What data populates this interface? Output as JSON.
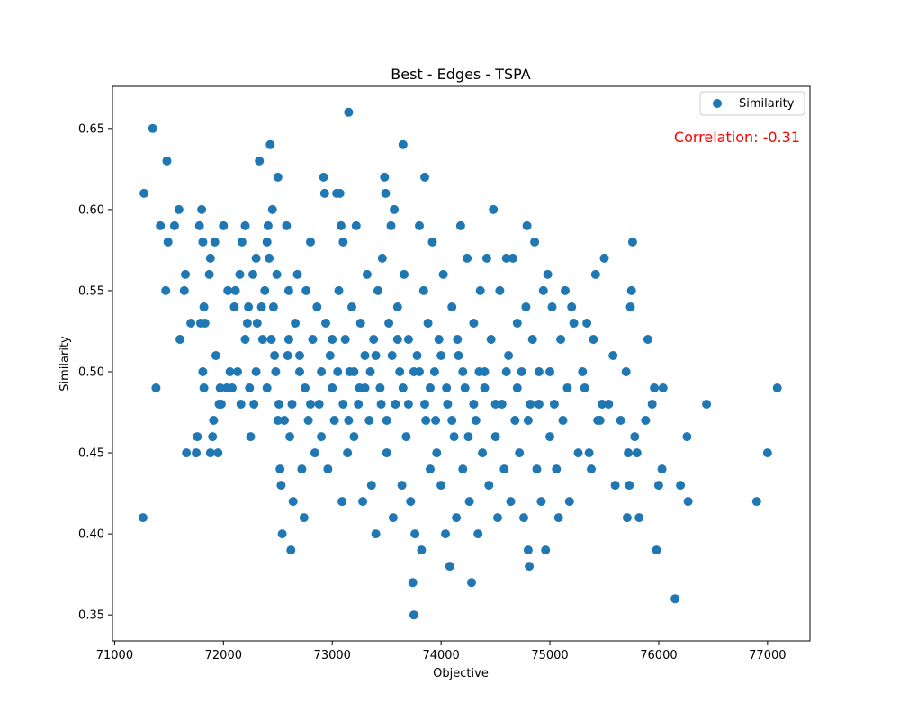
{
  "colors": {
    "marker": "#1f77b4",
    "annotation": "#ff0000",
    "axis": "#000000",
    "legend_border": "#cccccc"
  },
  "chart_data": {
    "type": "scatter",
    "title": "Best - Edges - TSPA",
    "xlabel": "Objective",
    "ylabel": "Similarity",
    "xlim": [
      70980,
      77390
    ],
    "ylim": [
      0.334,
      0.676
    ],
    "xticks": [
      71000,
      72000,
      73000,
      74000,
      75000,
      76000,
      77000
    ],
    "yticks": [
      0.35,
      0.4,
      0.45,
      0.5,
      0.55,
      0.6,
      0.65
    ],
    "xtick_labels": [
      "71000",
      "72000",
      "73000",
      "74000",
      "75000",
      "76000",
      "77000"
    ],
    "ytick_labels": [
      "0.35",
      "0.40",
      "0.45",
      "0.50",
      "0.55",
      "0.60",
      "0.65"
    ],
    "grid": false,
    "legend": {
      "placement": "top-right",
      "entries": [
        "Similarity"
      ]
    },
    "annotation": "Correlation: -0.31",
    "series": [
      {
        "name": "Similarity",
        "points": [
          [
            71270,
            0.61
          ],
          [
            71350,
            0.65
          ],
          [
            71380,
            0.49
          ],
          [
            71260,
            0.41
          ],
          [
            71480,
            0.63
          ],
          [
            71420,
            0.59
          ],
          [
            71490,
            0.58
          ],
          [
            71470,
            0.55
          ],
          [
            71550,
            0.59
          ],
          [
            71590,
            0.6
          ],
          [
            71600,
            0.52
          ],
          [
            71640,
            0.55
          ],
          [
            71650,
            0.56
          ],
          [
            71660,
            0.45
          ],
          [
            71700,
            0.53
          ],
          [
            71750,
            0.45
          ],
          [
            71760,
            0.46
          ],
          [
            71780,
            0.59
          ],
          [
            71800,
            0.6
          ],
          [
            71810,
            0.58
          ],
          [
            71820,
            0.54
          ],
          [
            71830,
            0.53
          ],
          [
            71790,
            0.53
          ],
          [
            71810,
            0.5
          ],
          [
            71820,
            0.49
          ],
          [
            71870,
            0.56
          ],
          [
            71880,
            0.57
          ],
          [
            71880,
            0.45
          ],
          [
            71900,
            0.46
          ],
          [
            71910,
            0.47
          ],
          [
            71920,
            0.58
          ],
          [
            71930,
            0.51
          ],
          [
            71950,
            0.45
          ],
          [
            71960,
            0.48
          ],
          [
            71970,
            0.49
          ],
          [
            71980,
            0.48
          ],
          [
            72000,
            0.59
          ],
          [
            72030,
            0.49
          ],
          [
            72040,
            0.55
          ],
          [
            72060,
            0.5
          ],
          [
            72080,
            0.49
          ],
          [
            72100,
            0.54
          ],
          [
            72110,
            0.55
          ],
          [
            72130,
            0.5
          ],
          [
            72150,
            0.56
          ],
          [
            72160,
            0.48
          ],
          [
            72170,
            0.58
          ],
          [
            72200,
            0.59
          ],
          [
            72220,
            0.53
          ],
          [
            72230,
            0.54
          ],
          [
            72240,
            0.49
          ],
          [
            72250,
            0.46
          ],
          [
            72270,
            0.56
          ],
          [
            72280,
            0.48
          ],
          [
            72300,
            0.57
          ],
          [
            72310,
            0.53
          ],
          [
            72330,
            0.63
          ],
          [
            72350,
            0.54
          ],
          [
            72360,
            0.52
          ],
          [
            72380,
            0.55
          ],
          [
            72400,
            0.58
          ],
          [
            72410,
            0.59
          ],
          [
            72420,
            0.57
          ],
          [
            72430,
            0.64
          ],
          [
            72440,
            0.52
          ],
          [
            72450,
            0.6
          ],
          [
            72460,
            0.54
          ],
          [
            72470,
            0.51
          ],
          [
            72480,
            0.5
          ],
          [
            72490,
            0.56
          ],
          [
            72500,
            0.62
          ],
          [
            72510,
            0.48
          ],
          [
            72520,
            0.44
          ],
          [
            72530,
            0.43
          ],
          [
            72540,
            0.4
          ],
          [
            72560,
            0.47
          ],
          [
            72580,
            0.59
          ],
          [
            72590,
            0.51
          ],
          [
            72600,
            0.55
          ],
          [
            72610,
            0.46
          ],
          [
            72620,
            0.39
          ],
          [
            72630,
            0.48
          ],
          [
            72640,
            0.42
          ],
          [
            72660,
            0.53
          ],
          [
            72680,
            0.56
          ],
          [
            72700,
            0.5
          ],
          [
            72720,
            0.44
          ],
          [
            72740,
            0.41
          ],
          [
            72750,
            0.49
          ],
          [
            72760,
            0.55
          ],
          [
            72780,
            0.47
          ],
          [
            72800,
            0.58
          ],
          [
            72820,
            0.52
          ],
          [
            72840,
            0.45
          ],
          [
            72860,
            0.54
          ],
          [
            72880,
            0.48
          ],
          [
            72900,
            0.5
          ],
          [
            72920,
            0.62
          ],
          [
            72930,
            0.61
          ],
          [
            72940,
            0.53
          ],
          [
            72960,
            0.44
          ],
          [
            72980,
            0.51
          ],
          [
            73000,
            0.49
          ],
          [
            73020,
            0.47
          ],
          [
            73040,
            0.61
          ],
          [
            73060,
            0.55
          ],
          [
            73070,
            0.61
          ],
          [
            73080,
            0.59
          ],
          [
            73090,
            0.42
          ],
          [
            73100,
            0.58
          ],
          [
            73120,
            0.52
          ],
          [
            73140,
            0.45
          ],
          [
            73150,
            0.66
          ],
          [
            73160,
            0.5
          ],
          [
            73180,
            0.54
          ],
          [
            73200,
            0.46
          ],
          [
            73220,
            0.59
          ],
          [
            73240,
            0.48
          ],
          [
            73260,
            0.53
          ],
          [
            73280,
            0.42
          ],
          [
            73300,
            0.51
          ],
          [
            73320,
            0.56
          ],
          [
            73340,
            0.47
          ],
          [
            73360,
            0.43
          ],
          [
            73380,
            0.52
          ],
          [
            73400,
            0.4
          ],
          [
            73420,
            0.55
          ],
          [
            73440,
            0.49
          ],
          [
            73460,
            0.57
          ],
          [
            73480,
            0.62
          ],
          [
            73490,
            0.61
          ],
          [
            73500,
            0.45
          ],
          [
            73520,
            0.53
          ],
          [
            73540,
            0.59
          ],
          [
            73560,
            0.41
          ],
          [
            73570,
            0.6
          ],
          [
            73580,
            0.48
          ],
          [
            73600,
            0.54
          ],
          [
            73620,
            0.5
          ],
          [
            73640,
            0.43
          ],
          [
            73650,
            0.64
          ],
          [
            73660,
            0.56
          ],
          [
            73680,
            0.46
          ],
          [
            73700,
            0.52
          ],
          [
            73720,
            0.42
          ],
          [
            73740,
            0.37
          ],
          [
            73750,
            0.35
          ],
          [
            73760,
            0.4
          ],
          [
            73780,
            0.51
          ],
          [
            73800,
            0.59
          ],
          [
            73820,
            0.39
          ],
          [
            73840,
            0.55
          ],
          [
            73850,
            0.62
          ],
          [
            73860,
            0.47
          ],
          [
            73880,
            0.53
          ],
          [
            73900,
            0.44
          ],
          [
            73920,
            0.58
          ],
          [
            73940,
            0.5
          ],
          [
            73960,
            0.45
          ],
          [
            73980,
            0.52
          ],
          [
            74000,
            0.43
          ],
          [
            74020,
            0.56
          ],
          [
            74040,
            0.4
          ],
          [
            74060,
            0.48
          ],
          [
            74080,
            0.38
          ],
          [
            74100,
            0.54
          ],
          [
            74120,
            0.46
          ],
          [
            74140,
            0.41
          ],
          [
            74160,
            0.51
          ],
          [
            74180,
            0.59
          ],
          [
            74200,
            0.44
          ],
          [
            74220,
            0.49
          ],
          [
            74240,
            0.57
          ],
          [
            74260,
            0.42
          ],
          [
            74280,
            0.37
          ],
          [
            74300,
            0.53
          ],
          [
            74320,
            0.47
          ],
          [
            74340,
            0.4
          ],
          [
            74360,
            0.55
          ],
          [
            74380,
            0.45
          ],
          [
            74400,
            0.5
          ],
          [
            74420,
            0.57
          ],
          [
            74440,
            0.43
          ],
          [
            74460,
            0.52
          ],
          [
            74480,
            0.6
          ],
          [
            74500,
            0.46
          ],
          [
            74520,
            0.41
          ],
          [
            74540,
            0.55
          ],
          [
            74560,
            0.48
          ],
          [
            74580,
            0.44
          ],
          [
            74600,
            0.57
          ],
          [
            74620,
            0.51
          ],
          [
            74640,
            0.42
          ],
          [
            74660,
            0.57
          ],
          [
            74680,
            0.47
          ],
          [
            74700,
            0.53
          ],
          [
            74720,
            0.45
          ],
          [
            74740,
            0.5
          ],
          [
            74760,
            0.41
          ],
          [
            74780,
            0.54
          ],
          [
            74790,
            0.59
          ],
          [
            74800,
            0.39
          ],
          [
            74810,
            0.38
          ],
          [
            74820,
            0.48
          ],
          [
            74840,
            0.52
          ],
          [
            74860,
            0.58
          ],
          [
            74880,
            0.44
          ],
          [
            74900,
            0.5
          ],
          [
            74920,
            0.42
          ],
          [
            74940,
            0.55
          ],
          [
            74960,
            0.39
          ],
          [
            74980,
            0.56
          ],
          [
            75000,
            0.46
          ],
          [
            75020,
            0.54
          ],
          [
            75040,
            0.48
          ],
          [
            75060,
            0.44
          ],
          [
            75080,
            0.41
          ],
          [
            75100,
            0.52
          ],
          [
            75120,
            0.47
          ],
          [
            75140,
            0.55
          ],
          [
            75160,
            0.49
          ],
          [
            75180,
            0.42
          ],
          [
            75200,
            0.54
          ],
          [
            75220,
            0.53
          ],
          [
            75260,
            0.45
          ],
          [
            75300,
            0.5
          ],
          [
            75320,
            0.49
          ],
          [
            75340,
            0.53
          ],
          [
            75360,
            0.45
          ],
          [
            75380,
            0.44
          ],
          [
            75400,
            0.52
          ],
          [
            75420,
            0.56
          ],
          [
            75440,
            0.47
          ],
          [
            75460,
            0.47
          ],
          [
            75480,
            0.48
          ],
          [
            75500,
            0.57
          ],
          [
            75540,
            0.48
          ],
          [
            75580,
            0.51
          ],
          [
            75600,
            0.43
          ],
          [
            75650,
            0.47
          ],
          [
            75700,
            0.5
          ],
          [
            75710,
            0.41
          ],
          [
            75720,
            0.45
          ],
          [
            75730,
            0.43
          ],
          [
            75740,
            0.54
          ],
          [
            75750,
            0.55
          ],
          [
            75760,
            0.58
          ],
          [
            75780,
            0.46
          ],
          [
            75800,
            0.45
          ],
          [
            75820,
            0.41
          ],
          [
            75880,
            0.47
          ],
          [
            75900,
            0.52
          ],
          [
            75940,
            0.48
          ],
          [
            75960,
            0.49
          ],
          [
            75980,
            0.39
          ],
          [
            76000,
            0.43
          ],
          [
            76030,
            0.44
          ],
          [
            76040,
            0.49
          ],
          [
            76150,
            0.36
          ],
          [
            76200,
            0.43
          ],
          [
            76260,
            0.46
          ],
          [
            76270,
            0.42
          ],
          [
            76440,
            0.48
          ],
          [
            76900,
            0.42
          ],
          [
            77000,
            0.45
          ],
          [
            77090,
            0.49
          ],
          [
            72900,
            0.46
          ],
          [
            73000,
            0.52
          ],
          [
            73100,
            0.48
          ],
          [
            73200,
            0.5
          ],
          [
            73300,
            0.49
          ],
          [
            73400,
            0.51
          ],
          [
            73500,
            0.47
          ],
          [
            73600,
            0.52
          ],
          [
            73700,
            0.48
          ],
          [
            73800,
            0.5
          ],
          [
            73900,
            0.49
          ],
          [
            74000,
            0.51
          ],
          [
            74100,
            0.47
          ],
          [
            74200,
            0.5
          ],
          [
            74300,
            0.48
          ],
          [
            74400,
            0.49
          ],
          [
            72700,
            0.51
          ],
          [
            72800,
            0.48
          ],
          [
            73050,
            0.5
          ],
          [
            73150,
            0.47
          ],
          [
            73250,
            0.49
          ],
          [
            73350,
            0.5
          ],
          [
            73450,
            0.48
          ],
          [
            73550,
            0.51
          ],
          [
            73650,
            0.49
          ],
          [
            73750,
            0.5
          ],
          [
            73850,
            0.48
          ],
          [
            73950,
            0.47
          ],
          [
            74050,
            0.49
          ],
          [
            74150,
            0.52
          ],
          [
            74250,
            0.46
          ],
          [
            74350,
            0.5
          ],
          [
            72600,
            0.52
          ],
          [
            72500,
            0.47
          ],
          [
            72400,
            0.49
          ],
          [
            72300,
            0.5
          ],
          [
            72200,
            0.52
          ],
          [
            74500,
            0.48
          ],
          [
            74600,
            0.5
          ],
          [
            74700,
            0.49
          ],
          [
            74800,
            0.47
          ],
          [
            74900,
            0.48
          ],
          [
            75000,
            0.5
          ]
        ]
      }
    ]
  }
}
